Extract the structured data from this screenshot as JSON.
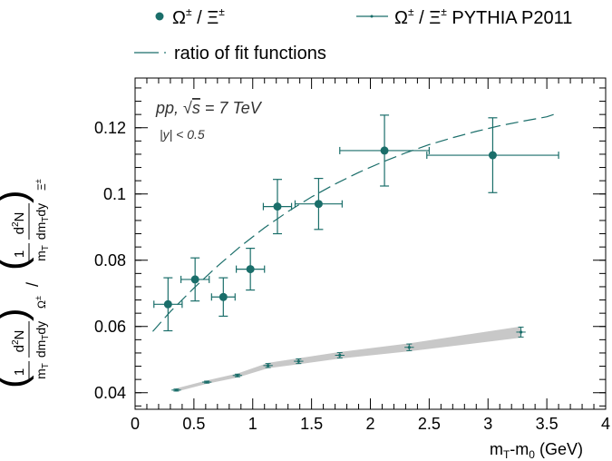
{
  "chart_data": {
    "type": "scatter",
    "xlabel": "m_T-m_0 (GeV)",
    "xlim": [
      0,
      4
    ],
    "ylim": [
      0.035,
      0.135
    ],
    "x_ticks": [
      "0",
      "0.5",
      "1",
      "1.5",
      "2",
      "2.5",
      "3",
      "3.5",
      "4"
    ],
    "y_ticks": [
      "0.04",
      "0.06",
      "0.08",
      "0.1",
      "0.12"
    ],
    "x_tick_values": [
      0,
      0.5,
      1,
      1.5,
      2,
      2.5,
      3,
      3.5,
      4
    ],
    "y_tick_values": [
      0.04,
      0.06,
      0.08,
      0.1,
      0.12
    ],
    "grid": false,
    "legend_position": "top",
    "annotations": {
      "system": "pp, √s = 7 TeV",
      "rapidity": "|y| < 0.5"
    },
    "ylabel_parts": {
      "one": "1",
      "mt": "m",
      "sub_t": "T",
      "d2n": "d",
      "sup2": "2",
      "n": "N",
      "dmtdy": "dm",
      "dy": "dy",
      "sub_omega": "Ω",
      "sub_xi": "Ξ",
      "pm": "±",
      "slash": "/"
    },
    "colors": {
      "data": "#1a6e6a",
      "pythia": "#1a6e6a",
      "fit": "#1a6e6a",
      "band": "#c8c8c8"
    },
    "series": [
      {
        "name": "Ω± / Ξ±",
        "marker": "filled-circle",
        "points": [
          {
            "x": 0.28,
            "y": 0.0667,
            "xerr": 0.12,
            "yerr": 0.008
          },
          {
            "x": 0.51,
            "y": 0.0742,
            "xerr": 0.12,
            "yerr": 0.0065
          },
          {
            "x": 0.75,
            "y": 0.0689,
            "xerr": 0.1,
            "yerr": 0.0058
          },
          {
            "x": 0.98,
            "y": 0.0773,
            "xerr": 0.12,
            "yerr": 0.0063
          },
          {
            "x": 1.21,
            "y": 0.0962,
            "xerr": 0.12,
            "yerr": 0.0082
          },
          {
            "x": 1.56,
            "y": 0.097,
            "xerr": 0.2,
            "yerr": 0.0077
          },
          {
            "x": 2.12,
            "y": 0.1131,
            "xerr": 0.38,
            "yerr": 0.0107
          },
          {
            "x": 3.04,
            "y": 0.1117,
            "xerr": 0.56,
            "yerr": 0.0113
          }
        ]
      },
      {
        "name": "Ω± / Ξ± PYTHIA P2011",
        "marker": "small-dot-line",
        "points": [
          {
            "x": 0.35,
            "y": 0.0408,
            "xerr": 0.04,
            "yerr": 0.0003
          },
          {
            "x": 0.61,
            "y": 0.0432,
            "xerr": 0.04,
            "yerr": 0.0003
          },
          {
            "x": 0.87,
            "y": 0.0452,
            "xerr": 0.04,
            "yerr": 0.0004
          },
          {
            "x": 1.13,
            "y": 0.0482,
            "xerr": 0.04,
            "yerr": 0.0006
          },
          {
            "x": 1.39,
            "y": 0.0495,
            "xerr": 0.04,
            "yerr": 0.0007
          },
          {
            "x": 1.74,
            "y": 0.0513,
            "xerr": 0.04,
            "yerr": 0.0008
          },
          {
            "x": 2.33,
            "y": 0.0537,
            "xerr": 0.04,
            "yerr": 0.001
          },
          {
            "x": 3.28,
            "y": 0.0583,
            "xerr": 0.04,
            "yerr": 0.0015
          }
        ]
      },
      {
        "name": "ratio of fit functions",
        "style": "dashed",
        "x": [
          0.15,
          0.3,
          0.5,
          0.7,
          0.9,
          1.1,
          1.3,
          1.5,
          1.7,
          1.9,
          2.1,
          2.3,
          2.5,
          2.7,
          2.9,
          3.1,
          3.3,
          3.5,
          3.6
        ],
        "y": [
          0.0585,
          0.0645,
          0.0716,
          0.0782,
          0.0843,
          0.0898,
          0.0947,
          0.0991,
          0.103,
          0.1065,
          0.1096,
          0.1124,
          0.1149,
          0.117,
          0.1189,
          0.1206,
          0.122,
          0.1233,
          0.1245
        ]
      }
    ]
  },
  "legend": {
    "data_label": "Ω± / Ξ±",
    "pythia_label": "Ω± / Ξ± PYTHIA P2011",
    "fit_label": "ratio of fit functions"
  }
}
